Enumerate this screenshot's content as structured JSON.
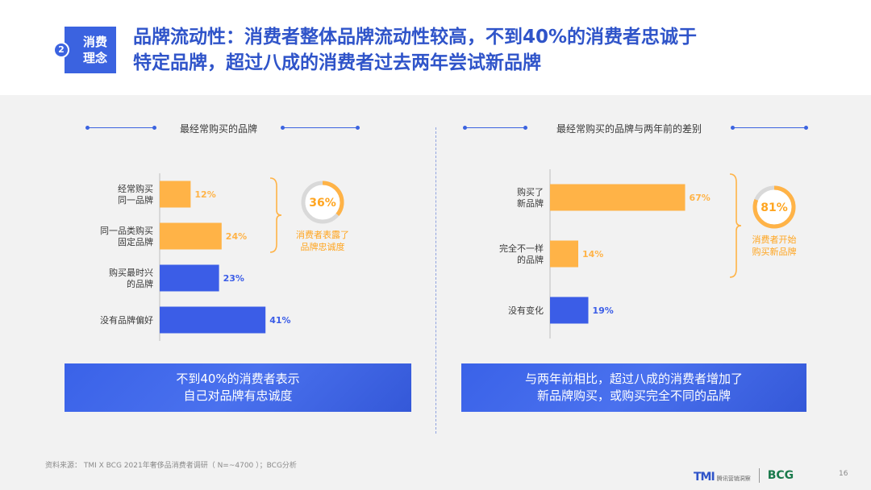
{
  "header": {
    "badge_label_line1": "消费",
    "badge_label_line2": "理念",
    "badge_number": "2",
    "title_line1": "品牌流动性：消费者整体品牌流动性较高，不到40%的消费者忠诚于",
    "title_line2": "特定品牌，超过八成的消费者过去两年尝试新品牌"
  },
  "chart_data": [
    {
      "type": "bar",
      "orientation": "horizontal",
      "title": "最经常购买的品牌",
      "categories": [
        [
          "经常购买",
          "同一品牌"
        ],
        [
          "同一品类购买",
          "固定品牌"
        ],
        [
          "购买最时兴",
          "的品牌"
        ],
        [
          "没有品牌偏好"
        ]
      ],
      "values": [
        12,
        24,
        23,
        41
      ],
      "value_labels": [
        "12%",
        "24%",
        "23%",
        "41%"
      ],
      "bar_colors": [
        "#ffb347",
        "#ffb347",
        "#3b5de7",
        "#3b5de7"
      ],
      "summary": {
        "value": 36,
        "label": "36%",
        "text_line1": "消费者表露了",
        "text_line2": "品牌忠诚度",
        "groups_bars": [
          0,
          1
        ]
      }
    },
    {
      "type": "bar",
      "orientation": "horizontal",
      "title": "最经常购买的品牌与两年前的差别",
      "categories": [
        [
          "购买了",
          "新品牌"
        ],
        [
          "完全不一样",
          "的品牌"
        ],
        [
          "没有变化"
        ]
      ],
      "values": [
        67,
        14,
        19
      ],
      "value_labels": [
        "67%",
        "14%",
        "19%"
      ],
      "bar_colors": [
        "#ffb347",
        "#ffb347",
        "#3b5de7"
      ],
      "summary": {
        "value": 81,
        "label": "81%",
        "text_line1": "消费者开始",
        "text_line2": "购买新品牌",
        "groups_bars": [
          0,
          1
        ]
      }
    }
  ],
  "callouts": {
    "left_line1": "不到40%的消费者表示",
    "left_line2": "自己对品牌有忠诚度",
    "right_line1": "与两年前相比，超过八成的消费者增加了",
    "right_line2": "新品牌购买，或购买完全不同的品牌"
  },
  "footer": {
    "source": "资料来源： TMI X BCG 2021年奢侈品消费者调研（ N=~4700 ）；BCG分析",
    "page_number": "16",
    "tmi_logo": "TMI",
    "tmi_sub": "腾讯营销洞察",
    "bcg_logo": "BCG"
  },
  "colors": {
    "accent_blue": "#3b5de7",
    "accent_orange": "#ffb347",
    "title_blue": "#2f54c9"
  }
}
